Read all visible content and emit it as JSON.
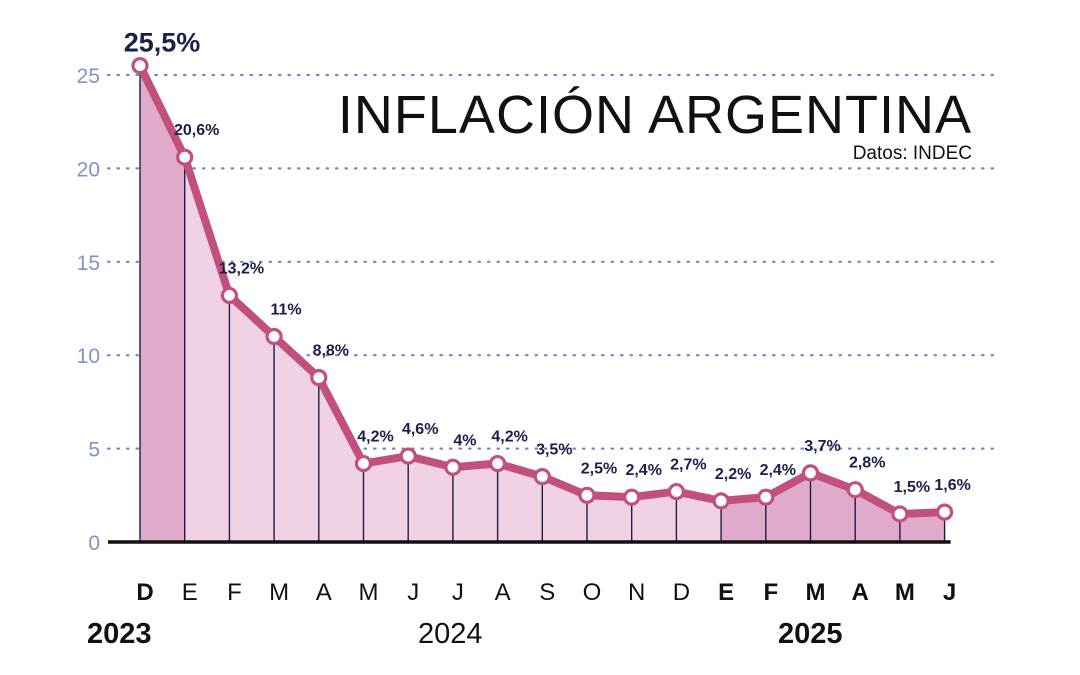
{
  "chart_data": {
    "type": "area",
    "title": "INFLACIÓN ARGENTINA",
    "source": "Datos: INDEC",
    "ylim": [
      0,
      25
    ],
    "y_ticks": [
      0,
      5,
      10,
      15,
      20,
      25
    ],
    "grid": true,
    "categories": [
      "D",
      "E",
      "F",
      "M",
      "A",
      "M",
      "J",
      "J",
      "A",
      "S",
      "O",
      "N",
      "D",
      "E",
      "F",
      "M",
      "A",
      "M",
      "J"
    ],
    "category_bold": [
      true,
      false,
      false,
      false,
      false,
      false,
      false,
      false,
      false,
      false,
      false,
      false,
      false,
      true,
      true,
      true,
      true,
      true,
      true
    ],
    "values": [
      25.5,
      20.6,
      13.2,
      11,
      8.8,
      4.2,
      4.6,
      4,
      4.2,
      3.5,
      2.5,
      2.4,
      2.7,
      2.2,
      2.4,
      3.7,
      2.8,
      1.5,
      1.6
    ],
    "data_labels": [
      "25,5%",
      "20,6%",
      "13,2%",
      "11%",
      "8,8%",
      "4,2%",
      "4,6%",
      "4%",
      "4,2%",
      "3,5%",
      "2,5%",
      "2,4%",
      "2,7%",
      "2,2%",
      "2,4%",
      "3,7%",
      "2,8%",
      "1,5%",
      "1,6%"
    ],
    "years": [
      {
        "label": "2023",
        "bold": true
      },
      {
        "label": "2024",
        "bold": false
      },
      {
        "label": "2025",
        "bold": true
      }
    ],
    "colors": {
      "line": "#c2507e",
      "fill_light": "#f1d2e4",
      "fill_dark": "#e0aacb",
      "grid": "#6f88c6",
      "axis_text": "#7f93c9",
      "label": "#1b1f4a",
      "stem": "#1b1f4a"
    }
  }
}
